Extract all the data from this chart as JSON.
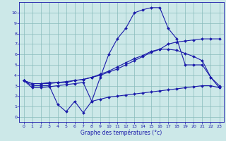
{
  "xlabel": "Graphe des températures (°c)",
  "bg_color": "#cce8e8",
  "line_color": "#1a1aaa",
  "grid_color": "#88bbbb",
  "x_ticks": [
    0,
    1,
    2,
    3,
    4,
    5,
    6,
    7,
    8,
    9,
    10,
    11,
    12,
    13,
    14,
    15,
    16,
    17,
    18,
    19,
    20,
    21,
    22,
    23
  ],
  "y_ticks": [
    0,
    1,
    2,
    3,
    4,
    5,
    6,
    7,
    8,
    9,
    10
  ],
  "xlim": [
    -0.5,
    23.5
  ],
  "ylim": [
    -0.5,
    11.0
  ],
  "curve_top_x": [
    0,
    1,
    2,
    3,
    4,
    5,
    6,
    7,
    8,
    9,
    10,
    11,
    12,
    13,
    14,
    15,
    16,
    17,
    18,
    19,
    20,
    21,
    22,
    23
  ],
  "curve_top_y": [
    3.5,
    3.0,
    3.0,
    3.0,
    1.2,
    0.5,
    1.5,
    0.4,
    1.5,
    3.8,
    6.0,
    7.5,
    8.5,
    10.0,
    10.3,
    10.5,
    10.5,
    8.5,
    7.5,
    5.0,
    5.0,
    5.0,
    3.8,
    3.0
  ],
  "curve_mid1_x": [
    0,
    1,
    2,
    3,
    4,
    5,
    6,
    7,
    8,
    9,
    10,
    11,
    12,
    13,
    14,
    15,
    16,
    17,
    18,
    19,
    20,
    21,
    22,
    23
  ],
  "curve_mid1_y": [
    3.5,
    3.2,
    3.2,
    3.3,
    3.3,
    3.4,
    3.5,
    3.6,
    3.8,
    4.0,
    4.3,
    4.6,
    5.0,
    5.4,
    5.8,
    6.2,
    6.5,
    7.0,
    7.2,
    7.3,
    7.4,
    7.5,
    7.5,
    7.5
  ],
  "curve_mid2_x": [
    0,
    1,
    2,
    3,
    4,
    5,
    6,
    7,
    8,
    9,
    10,
    11,
    12,
    13,
    14,
    15,
    16,
    17,
    18,
    19,
    20,
    21,
    22,
    23
  ],
  "curve_mid2_y": [
    3.5,
    3.2,
    3.2,
    3.2,
    3.3,
    3.3,
    3.5,
    3.6,
    3.8,
    4.1,
    4.4,
    4.8,
    5.2,
    5.6,
    5.9,
    6.3,
    6.5,
    6.5,
    6.4,
    6.1,
    5.8,
    5.4,
    3.8,
    2.8
  ],
  "curve_bot_x": [
    0,
    1,
    2,
    3,
    4,
    5,
    6,
    7,
    8,
    9,
    10,
    11,
    12,
    13,
    14,
    15,
    16,
    17,
    18,
    19,
    20,
    21,
    22,
    23
  ],
  "curve_bot_y": [
    3.5,
    2.8,
    2.8,
    2.9,
    3.0,
    3.1,
    3.2,
    3.3,
    1.5,
    1.7,
    1.9,
    2.0,
    2.1,
    2.2,
    2.3,
    2.4,
    2.5,
    2.6,
    2.7,
    2.8,
    2.9,
    3.0,
    3.0,
    2.8
  ]
}
